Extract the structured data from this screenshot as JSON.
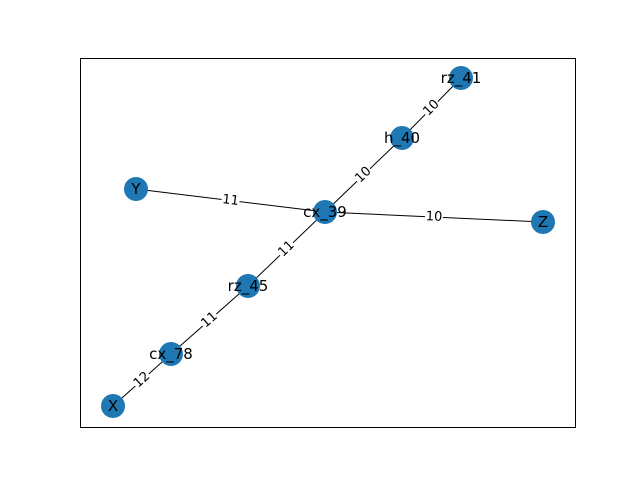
{
  "graph": {
    "node_color": "#1f77b4",
    "edge_color": "#000000",
    "frame_color": "#000000",
    "nodes": [
      {
        "id": "rz_41",
        "label": "rz_41"
      },
      {
        "id": "h_40",
        "label": "h_40"
      },
      {
        "id": "Y",
        "label": "Y"
      },
      {
        "id": "cx_39",
        "label": "cx_39"
      },
      {
        "id": "Z",
        "label": "Z"
      },
      {
        "id": "rz_45",
        "label": "rz_45"
      },
      {
        "id": "cx_78",
        "label": "cx_78"
      },
      {
        "id": "X",
        "label": "X"
      }
    ],
    "edges": [
      {
        "source": "rz_41",
        "target": "h_40",
        "weight": "10"
      },
      {
        "source": "h_40",
        "target": "cx_39",
        "weight": "10"
      },
      {
        "source": "Y",
        "target": "cx_39",
        "weight": "11"
      },
      {
        "source": "cx_39",
        "target": "Z",
        "weight": "10"
      },
      {
        "source": "cx_39",
        "target": "rz_45",
        "weight": "11"
      },
      {
        "source": "rz_45",
        "target": "cx_78",
        "weight": "11"
      },
      {
        "source": "cx_78",
        "target": "X",
        "weight": "12"
      }
    ]
  }
}
